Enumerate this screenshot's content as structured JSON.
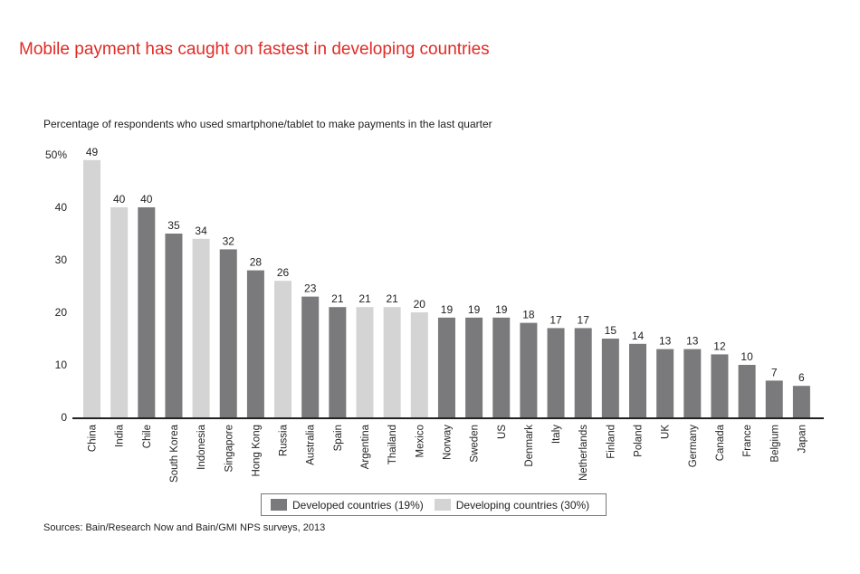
{
  "title": "Mobile payment has caught on fastest in developing countries",
  "source": "Sources: Bain/Research Now and Bain/GMI NPS surveys, 2013",
  "colors": {
    "title": "#e02b26",
    "developed": "#7a7a7c",
    "developing": "#d4d4d4",
    "axis": "#222222"
  },
  "legend": {
    "developed_label": "Developed countries (19%)",
    "developing_label": "Developing countries (30%)"
  },
  "chart_data": {
    "type": "bar",
    "title": "Mobile payment has caught on fastest in developing countries",
    "subtitle": "Percentage of respondents who used smartphone/tablet to make payments in the last quarter",
    "xlabel": "",
    "ylabel": "",
    "ylim": [
      0,
      50
    ],
    "yticks": [
      0,
      10,
      20,
      30,
      40,
      50
    ],
    "ytick_labels": [
      "0",
      "10",
      "20",
      "30",
      "40",
      "50%"
    ],
    "grid": false,
    "legend_position": "bottom-center",
    "categories": [
      "China",
      "India",
      "Chile",
      "South Korea",
      "Indonesia",
      "Singapore",
      "Hong Kong",
      "Russia",
      "Australia",
      "Spain",
      "Argentina",
      "Thailand",
      "Mexico",
      "Norway",
      "Sweden",
      "US",
      "Denmark",
      "Italy",
      "Netherlands",
      "Finland",
      "Poland",
      "UK",
      "Germany",
      "Canada",
      "France",
      "Belgium",
      "Japan"
    ],
    "values": [
      49,
      40,
      40,
      35,
      34,
      32,
      28,
      26,
      23,
      21,
      21,
      21,
      20,
      19,
      19,
      19,
      18,
      17,
      17,
      15,
      14,
      13,
      13,
      12,
      10,
      7,
      6
    ],
    "group": [
      "developing",
      "developing",
      "developed",
      "developed",
      "developing",
      "developed",
      "developed",
      "developing",
      "developed",
      "developed",
      "developing",
      "developing",
      "developing",
      "developed",
      "developed",
      "developed",
      "developed",
      "developed",
      "developed",
      "developed",
      "developed",
      "developed",
      "developed",
      "developed",
      "developed",
      "developed",
      "developed"
    ],
    "series": [
      {
        "name": "Developed countries (19%)",
        "key": "developed"
      },
      {
        "name": "Developing countries (30%)",
        "key": "developing"
      }
    ]
  }
}
